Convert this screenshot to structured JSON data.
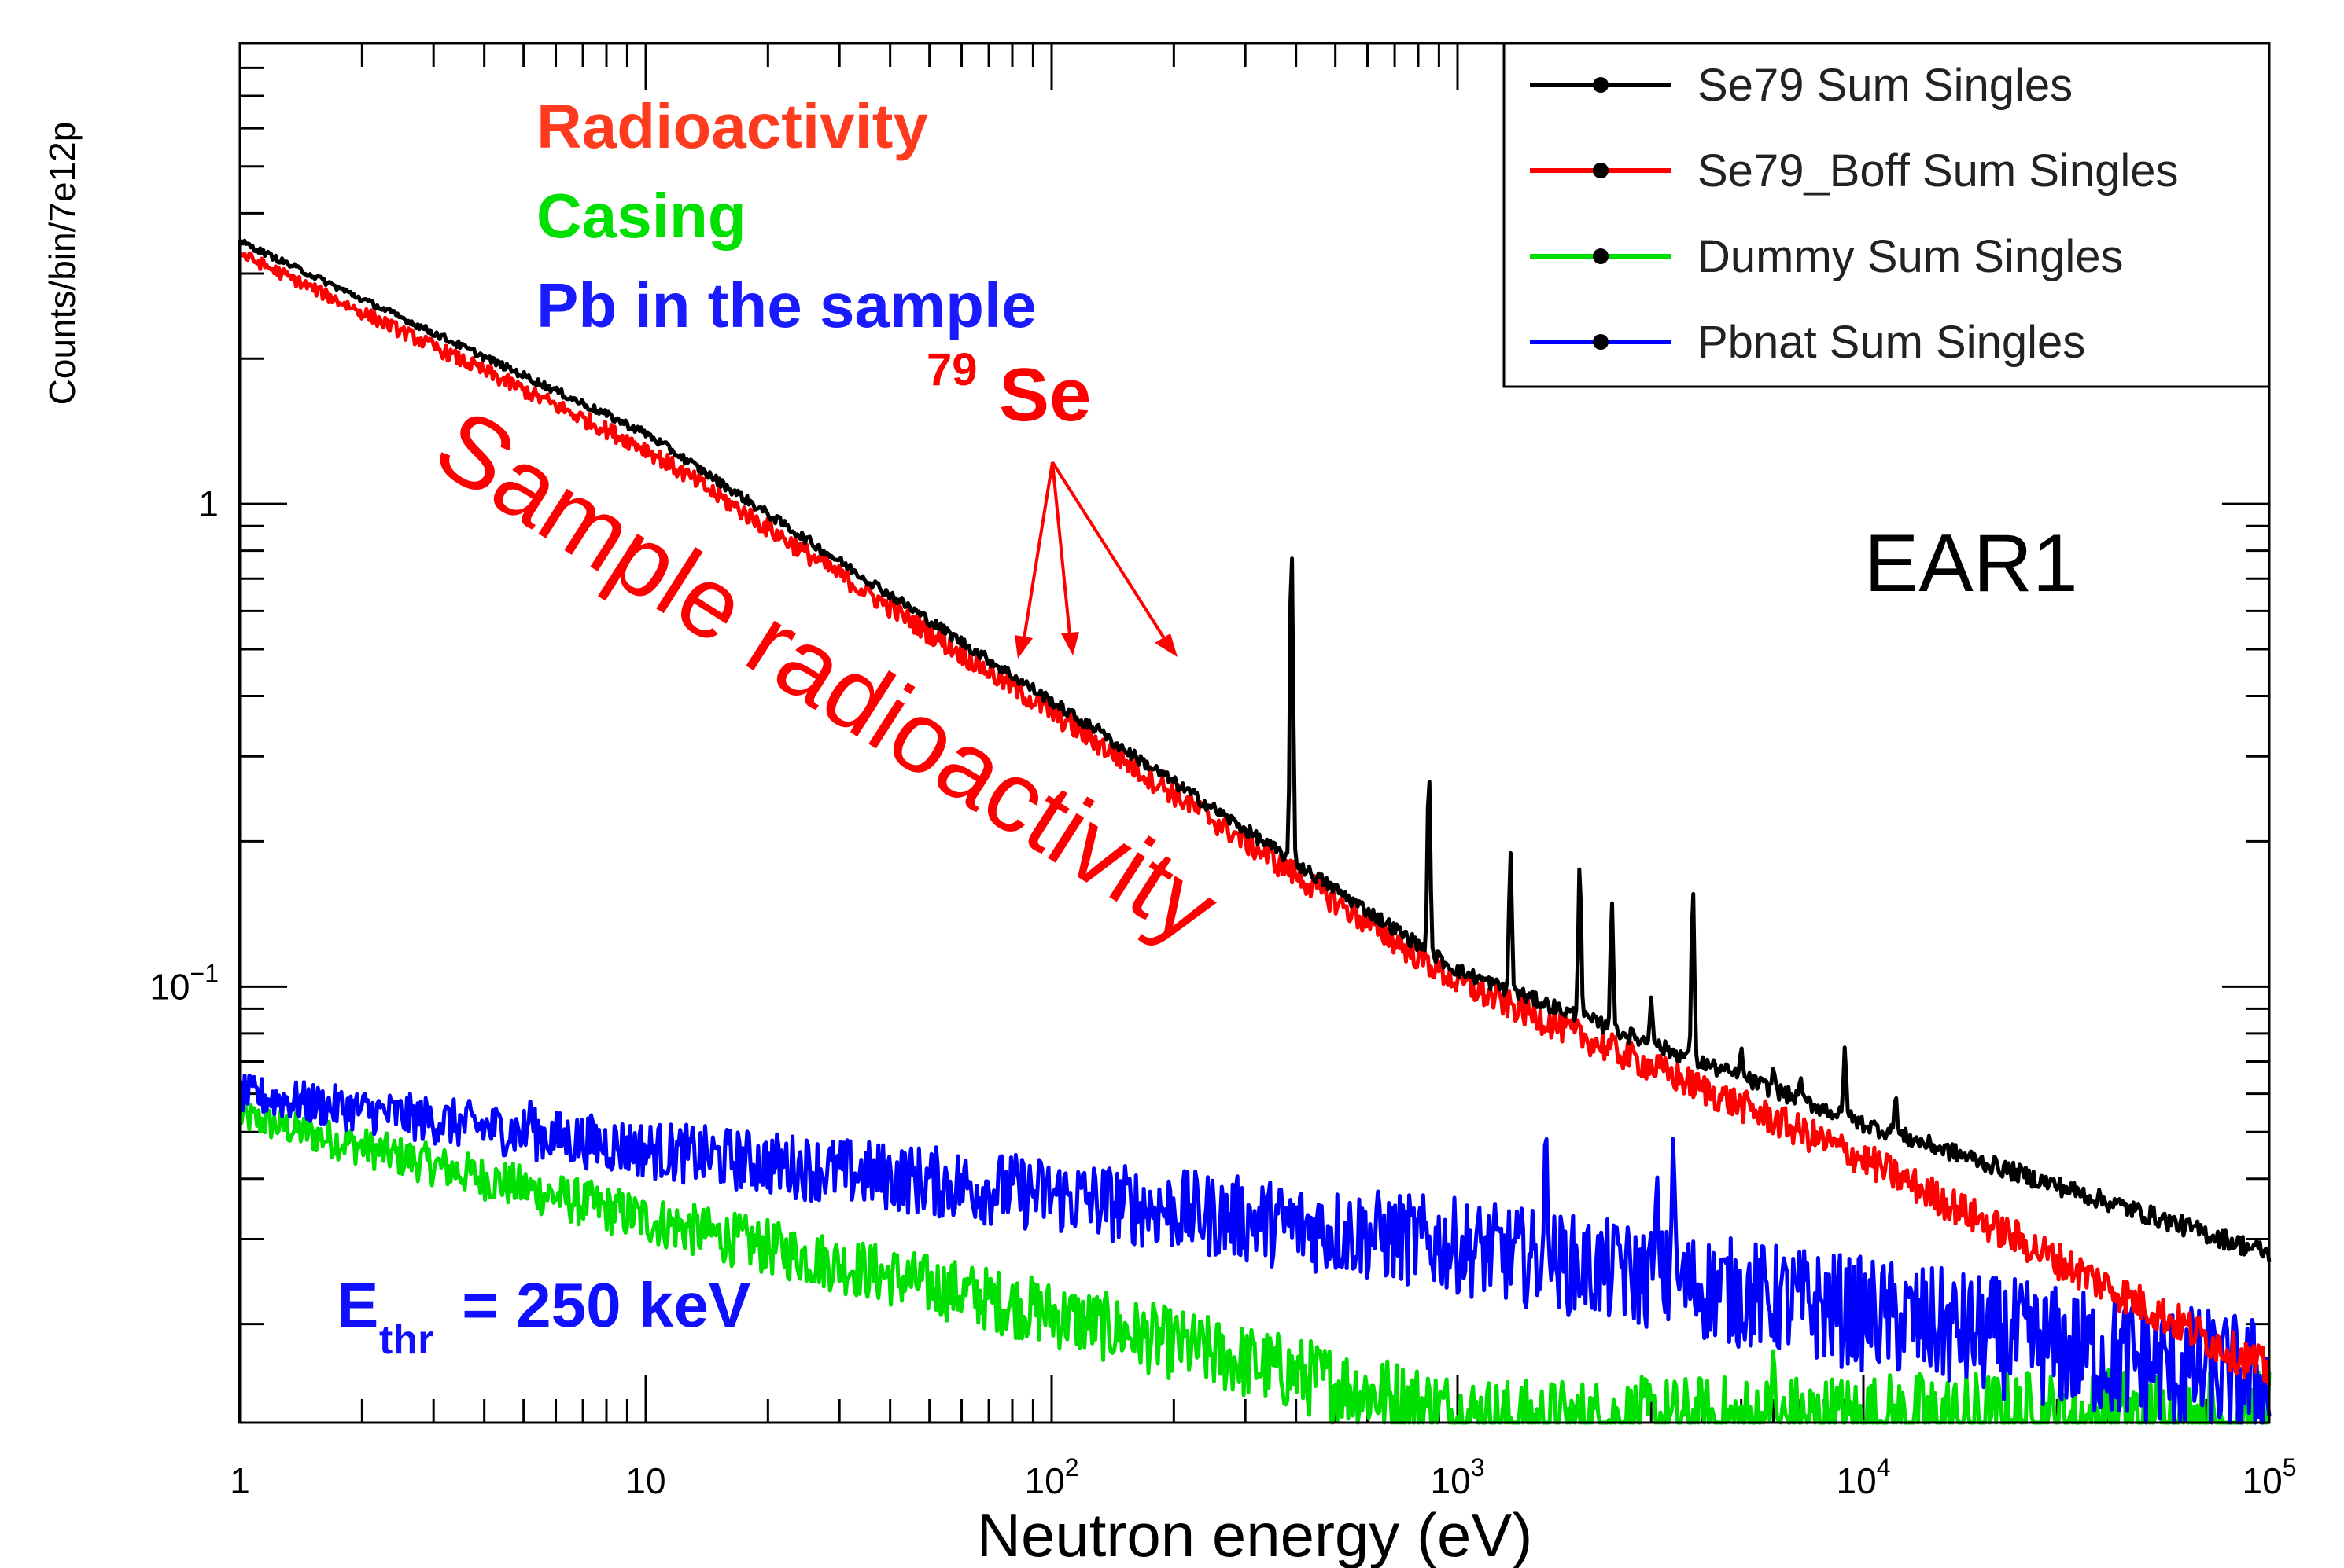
{
  "chart_data": {
    "type": "line",
    "x_scale": "log",
    "y_scale": "log",
    "xlim": [
      1,
      100000
    ],
    "ylim": [
      0.0125,
      9
    ],
    "xlabel": "Neutron energy (eV)",
    "ylabel": "Counts/bin/7e12p",
    "x_ticks": [
      {
        "value": 1,
        "label": "1"
      },
      {
        "value": 10,
        "label": "10"
      },
      {
        "value": 100,
        "base": "10",
        "exp": "2"
      },
      {
        "value": 1000,
        "base": "10",
        "exp": "3"
      },
      {
        "value": 10000,
        "base": "10",
        "exp": "4"
      },
      {
        "value": 100000,
        "base": "10",
        "exp": "5"
      }
    ],
    "y_ticks": [
      {
        "value": 1,
        "label": "1"
      },
      {
        "value": 0.1,
        "base": "10",
        "exp": "−1"
      }
    ],
    "series": [
      {
        "name": "Se79 Sum Singles",
        "color": "#000000",
        "x": [
          1,
          10,
          100,
          1000,
          10000,
          100000
        ],
        "y": [
          3.5,
          1.4,
          0.39,
          0.108,
          0.052,
          0.028
        ],
        "peaks": [
          {
            "x": 130,
            "y": 0.35
          },
          {
            "x": 390,
            "y": 0.82
          },
          {
            "x": 850,
            "y": 0.28
          },
          {
            "x": 1350,
            "y": 0.19
          },
          {
            "x": 2000,
            "y": 0.18
          },
          {
            "x": 2400,
            "y": 0.15
          },
          {
            "x": 3000,
            "y": 0.095
          },
          {
            "x": 3800,
            "y": 0.16
          },
          {
            "x": 5000,
            "y": 0.075
          },
          {
            "x": 6000,
            "y": 0.068
          },
          {
            "x": 7000,
            "y": 0.065
          },
          {
            "x": 9000,
            "y": 0.075
          },
          {
            "x": 12000,
            "y": 0.06
          }
        ]
      },
      {
        "name": "Se79_Boff Sum Singles",
        "color": "#ff0000",
        "x": [
          1,
          10,
          100,
          1000,
          10000,
          100000
        ],
        "y": [
          3.3,
          1.3,
          0.37,
          0.102,
          0.044,
          0.016
        ]
      },
      {
        "name": "Dummy Sum Singles",
        "color": "#00e000",
        "x": [
          1,
          10,
          100,
          1000,
          1400,
          100000
        ],
        "y": [
          0.054,
          0.033,
          0.021,
          0.013,
          0.0125,
          0.0125
        ],
        "peaks": [
          {
            "x": 6000,
            "y": 0.018
          }
        ]
      },
      {
        "name": "Pbnat Sum Singles",
        "color": "#0000ff",
        "x": [
          1,
          10,
          100,
          1000,
          10000,
          100000
        ],
        "y": [
          0.06,
          0.046,
          0.037,
          0.029,
          0.021,
          0.015
        ],
        "peaks": [
          {
            "x": 5.2,
            "y": 0.058
          },
          {
            "x": 1650,
            "y": 0.052
          },
          {
            "x": 2500,
            "y": 0.03
          },
          {
            "x": 3100,
            "y": 0.041
          },
          {
            "x": 3400,
            "y": 0.049
          }
        ]
      }
    ],
    "legend_position": "top-right",
    "annotations": {
      "radioactivity": {
        "text": "Radioactivity",
        "color": "#ff3b1f"
      },
      "casing": {
        "text": "Casing",
        "color": "#00e000"
      },
      "pb": {
        "text": "Pb in the sample",
        "color": "#1a1aff"
      },
      "se79": {
        "sup": "79",
        "text": "Se",
        "color": "#ff0000"
      },
      "sample_radioactivity": {
        "text": "Sample radioactivity",
        "color": "#ff0000"
      },
      "ear": {
        "text": "EAR1",
        "color": "#000000"
      },
      "ethr": {
        "main": "E",
        "sub": "thr",
        "rest": " = 250 keV",
        "color": "#1010ff"
      }
    }
  }
}
